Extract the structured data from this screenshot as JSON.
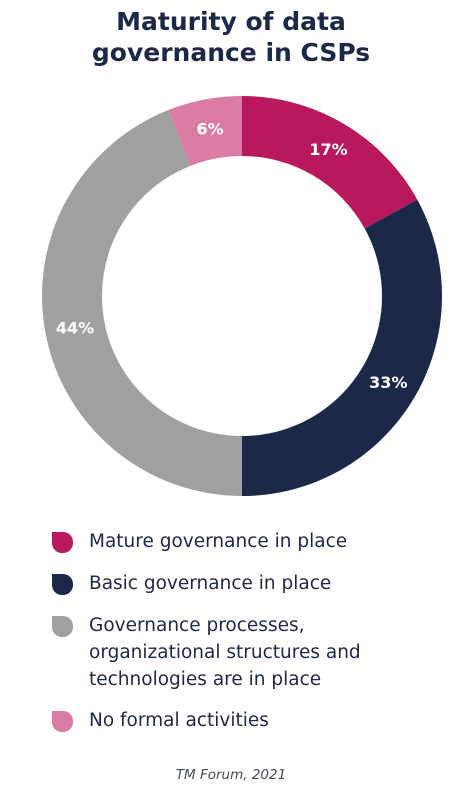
{
  "title_lines": [
    "Maturity of data",
    "governance in CSPs"
  ],
  "chart_data": {
    "type": "pie",
    "title": "Maturity of data governance in CSPs",
    "categories": [
      "Mature governance in place",
      "Basic governance in place",
      "Governance processes, organizational structures and technologies are in place",
      "No formal activities"
    ],
    "values": [
      17,
      33,
      44,
      6
    ],
    "value_labels": [
      "17%",
      "33%",
      "44%",
      "6%"
    ],
    "colors": [
      "#b8185e",
      "#1c2848",
      "#a0a0a0",
      "#d97ba3"
    ],
    "style": "donut",
    "legend": "bottom"
  },
  "legend": [
    {
      "lines": [
        "Mature governance in place"
      ],
      "color": "#b8185e"
    },
    {
      "lines": [
        "Basic governance in place"
      ],
      "color": "#1c2848"
    },
    {
      "lines": [
        "Governance processes,",
        "organizational structures and",
        "technologies are in place"
      ],
      "color": "#a0a0a0"
    },
    {
      "lines": [
        "No formal activities"
      ],
      "color": "#d97ba3"
    }
  ],
  "source": "TM Forum, 2021"
}
